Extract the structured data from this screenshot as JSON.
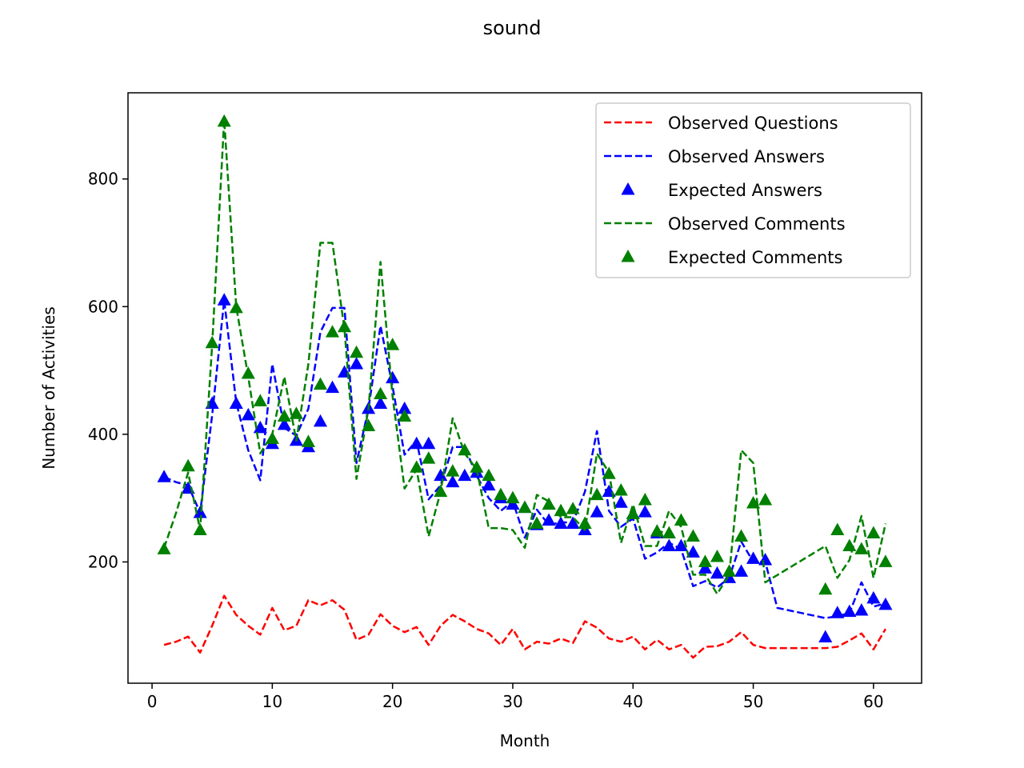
{
  "chart_data": {
    "type": "line",
    "title": "sound",
    "xlabel": "Month",
    "ylabel": "Number of Activities",
    "xlim": [
      -2,
      64
    ],
    "ylim": [
      10,
      935
    ],
    "xticks": [
      0,
      10,
      20,
      30,
      40,
      50,
      60
    ],
    "yticks": [
      200,
      400,
      600,
      800
    ],
    "legend_position": "top-right",
    "grid": false,
    "series": [
      {
        "name": "Observed Questions",
        "style": "dashed",
        "color": "#ff0000",
        "points": [
          [
            1,
            70
          ],
          [
            2,
            75
          ],
          [
            3,
            83
          ],
          [
            4,
            58
          ],
          [
            5,
            100
          ],
          [
            6,
            147
          ],
          [
            7,
            117
          ],
          [
            8,
            100
          ],
          [
            9,
            86
          ],
          [
            10,
            128
          ],
          [
            11,
            93
          ],
          [
            12,
            100
          ],
          [
            13,
            140
          ],
          [
            14,
            132
          ],
          [
            15,
            140
          ],
          [
            16,
            125
          ],
          [
            17,
            78
          ],
          [
            18,
            86
          ],
          [
            19,
            118
          ],
          [
            20,
            100
          ],
          [
            21,
            90
          ],
          [
            22,
            98
          ],
          [
            23,
            70
          ],
          [
            24,
            100
          ],
          [
            25,
            117
          ],
          [
            26,
            107
          ],
          [
            27,
            95
          ],
          [
            28,
            88
          ],
          [
            29,
            70
          ],
          [
            30,
            95
          ],
          [
            31,
            63
          ],
          [
            32,
            75
          ],
          [
            33,
            72
          ],
          [
            34,
            80
          ],
          [
            35,
            73
          ],
          [
            36,
            107
          ],
          [
            37,
            97
          ],
          [
            38,
            80
          ],
          [
            39,
            75
          ],
          [
            40,
            83
          ],
          [
            41,
            63
          ],
          [
            42,
            78
          ],
          [
            43,
            63
          ],
          [
            44,
            70
          ],
          [
            45,
            50
          ],
          [
            46,
            67
          ],
          [
            47,
            68
          ],
          [
            48,
            75
          ],
          [
            49,
            90
          ],
          [
            50,
            70
          ],
          [
            51,
            65
          ],
          [
            56,
            65
          ],
          [
            57,
            67
          ],
          [
            58,
            77
          ],
          [
            59,
            88
          ],
          [
            60,
            63
          ],
          [
            61,
            95
          ]
        ]
      },
      {
        "name": "Observed Answers",
        "style": "dashed",
        "color": "#0000ff",
        "points": [
          [
            1,
            333
          ],
          [
            2,
            325
          ],
          [
            3,
            320
          ],
          [
            4,
            277
          ],
          [
            5,
            430
          ],
          [
            6,
            610
          ],
          [
            7,
            450
          ],
          [
            8,
            375
          ],
          [
            9,
            328
          ],
          [
            10,
            510
          ],
          [
            11,
            410
          ],
          [
            12,
            398
          ],
          [
            13,
            440
          ],
          [
            14,
            560
          ],
          [
            15,
            598
          ],
          [
            16,
            598
          ],
          [
            17,
            355
          ],
          [
            18,
            440
          ],
          [
            19,
            570
          ],
          [
            20,
            475
          ],
          [
            21,
            368
          ],
          [
            22,
            390
          ],
          [
            23,
            298
          ],
          [
            24,
            320
          ],
          [
            25,
            380
          ],
          [
            26,
            380
          ],
          [
            27,
            335
          ],
          [
            28,
            300
          ],
          [
            29,
            280
          ],
          [
            30,
            295
          ],
          [
            31,
            238
          ],
          [
            32,
            282
          ],
          [
            33,
            258
          ],
          [
            34,
            262
          ],
          [
            35,
            262
          ],
          [
            36,
            310
          ],
          [
            37,
            405
          ],
          [
            38,
            280
          ],
          [
            39,
            255
          ],
          [
            40,
            268
          ],
          [
            41,
            205
          ],
          [
            42,
            215
          ],
          [
            43,
            230
          ],
          [
            44,
            220
          ],
          [
            45,
            162
          ],
          [
            46,
            170
          ],
          [
            47,
            160
          ],
          [
            48,
            175
          ],
          [
            49,
            232
          ],
          [
            50,
            200
          ],
          [
            51,
            200
          ],
          [
            52,
            128
          ],
          [
            56,
            112
          ],
          [
            57,
            115
          ],
          [
            58,
            120
          ],
          [
            59,
            168
          ],
          [
            60,
            130
          ],
          [
            61,
            135
          ]
        ]
      },
      {
        "name": "Expected Answers",
        "style": "markers",
        "marker": "triangle",
        "color": "#0000ff",
        "points": [
          [
            1,
            333
          ],
          [
            3,
            315
          ],
          [
            4,
            277
          ],
          [
            5,
            448
          ],
          [
            6,
            610
          ],
          [
            7,
            448
          ],
          [
            8,
            430
          ],
          [
            9,
            410
          ],
          [
            10,
            385
          ],
          [
            11,
            415
          ],
          [
            12,
            390
          ],
          [
            13,
            380
          ],
          [
            14,
            420
          ],
          [
            15,
            473
          ],
          [
            16,
            497
          ],
          [
            17,
            510
          ],
          [
            18,
            440
          ],
          [
            19,
            448
          ],
          [
            20,
            488
          ],
          [
            21,
            440
          ],
          [
            22,
            385
          ],
          [
            23,
            385
          ],
          [
            24,
            335
          ],
          [
            25,
            325
          ],
          [
            26,
            335
          ],
          [
            27,
            340
          ],
          [
            28,
            320
          ],
          [
            29,
            300
          ],
          [
            30,
            290
          ],
          [
            31,
            285
          ],
          [
            32,
            258
          ],
          [
            33,
            265
          ],
          [
            34,
            260
          ],
          [
            35,
            260
          ],
          [
            36,
            250
          ],
          [
            37,
            278
          ],
          [
            38,
            310
          ],
          [
            39,
            293
          ],
          [
            40,
            275
          ],
          [
            41,
            278
          ],
          [
            42,
            245
          ],
          [
            43,
            225
          ],
          [
            44,
            225
          ],
          [
            45,
            215
          ],
          [
            46,
            190
          ],
          [
            47,
            182
          ],
          [
            48,
            175
          ],
          [
            49,
            185
          ],
          [
            50,
            205
          ],
          [
            51,
            203
          ],
          [
            56,
            82
          ],
          [
            57,
            120
          ],
          [
            58,
            122
          ],
          [
            59,
            124
          ],
          [
            60,
            143
          ],
          [
            61,
            133
          ]
        ]
      },
      {
        "name": "Observed Comments",
        "style": "dashed",
        "color": "#008000",
        "points": [
          [
            1,
            222
          ],
          [
            2,
            277
          ],
          [
            3,
            340
          ],
          [
            4,
            250
          ],
          [
            5,
            540
          ],
          [
            6,
            893
          ],
          [
            7,
            600
          ],
          [
            8,
            490
          ],
          [
            9,
            370
          ],
          [
            10,
            400
          ],
          [
            11,
            490
          ],
          [
            12,
            390
          ],
          [
            13,
            510
          ],
          [
            14,
            700
          ],
          [
            15,
            700
          ],
          [
            16,
            565
          ],
          [
            17,
            330
          ],
          [
            18,
            440
          ],
          [
            19,
            670
          ],
          [
            20,
            460
          ],
          [
            21,
            315
          ],
          [
            22,
            345
          ],
          [
            23,
            240
          ],
          [
            24,
            310
          ],
          [
            25,
            425
          ],
          [
            26,
            370
          ],
          [
            27,
            345
          ],
          [
            28,
            253
          ],
          [
            29,
            253
          ],
          [
            30,
            250
          ],
          [
            31,
            222
          ],
          [
            32,
            305
          ],
          [
            33,
            295
          ],
          [
            34,
            270
          ],
          [
            35,
            270
          ],
          [
            36,
            250
          ],
          [
            37,
            370
          ],
          [
            38,
            340
          ],
          [
            39,
            230
          ],
          [
            40,
            290
          ],
          [
            41,
            225
          ],
          [
            42,
            225
          ],
          [
            43,
            280
          ],
          [
            44,
            255
          ],
          [
            45,
            180
          ],
          [
            46,
            180
          ],
          [
            47,
            150
          ],
          [
            48,
            180
          ],
          [
            49,
            375
          ],
          [
            50,
            355
          ],
          [
            51,
            168
          ],
          [
            56,
            225
          ],
          [
            57,
            175
          ],
          [
            58,
            203
          ],
          [
            59,
            272
          ],
          [
            60,
            175
          ],
          [
            61,
            260
          ]
        ]
      },
      {
        "name": "Expected Comments",
        "style": "markers",
        "marker": "triangle",
        "color": "#008000",
        "points": [
          [
            1,
            220
          ],
          [
            3,
            350
          ],
          [
            4,
            250
          ],
          [
            5,
            543
          ],
          [
            6,
            890
          ],
          [
            7,
            598
          ],
          [
            8,
            495
          ],
          [
            9,
            452
          ],
          [
            10,
            393
          ],
          [
            11,
            428
          ],
          [
            12,
            432
          ],
          [
            13,
            388
          ],
          [
            14,
            478
          ],
          [
            15,
            560
          ],
          [
            16,
            568
          ],
          [
            17,
            528
          ],
          [
            18,
            413
          ],
          [
            19,
            463
          ],
          [
            20,
            540
          ],
          [
            21,
            428
          ],
          [
            22,
            348
          ],
          [
            23,
            362
          ],
          [
            24,
            310
          ],
          [
            25,
            342
          ],
          [
            26,
            375
          ],
          [
            27,
            348
          ],
          [
            28,
            335
          ],
          [
            29,
            305
          ],
          [
            30,
            300
          ],
          [
            31,
            285
          ],
          [
            32,
            260
          ],
          [
            33,
            290
          ],
          [
            34,
            280
          ],
          [
            35,
            283
          ],
          [
            36,
            260
          ],
          [
            37,
            305
          ],
          [
            38,
            338
          ],
          [
            39,
            312
          ],
          [
            40,
            275
          ],
          [
            41,
            297
          ],
          [
            42,
            248
          ],
          [
            43,
            245
          ],
          [
            44,
            265
          ],
          [
            45,
            240
          ],
          [
            46,
            200
          ],
          [
            47,
            208
          ],
          [
            48,
            185
          ],
          [
            49,
            240
          ],
          [
            50,
            292
          ],
          [
            51,
            297
          ],
          [
            56,
            157
          ],
          [
            57,
            250
          ],
          [
            58,
            225
          ],
          [
            59,
            220
          ],
          [
            60,
            245
          ],
          [
            61,
            200
          ]
        ]
      }
    ]
  }
}
